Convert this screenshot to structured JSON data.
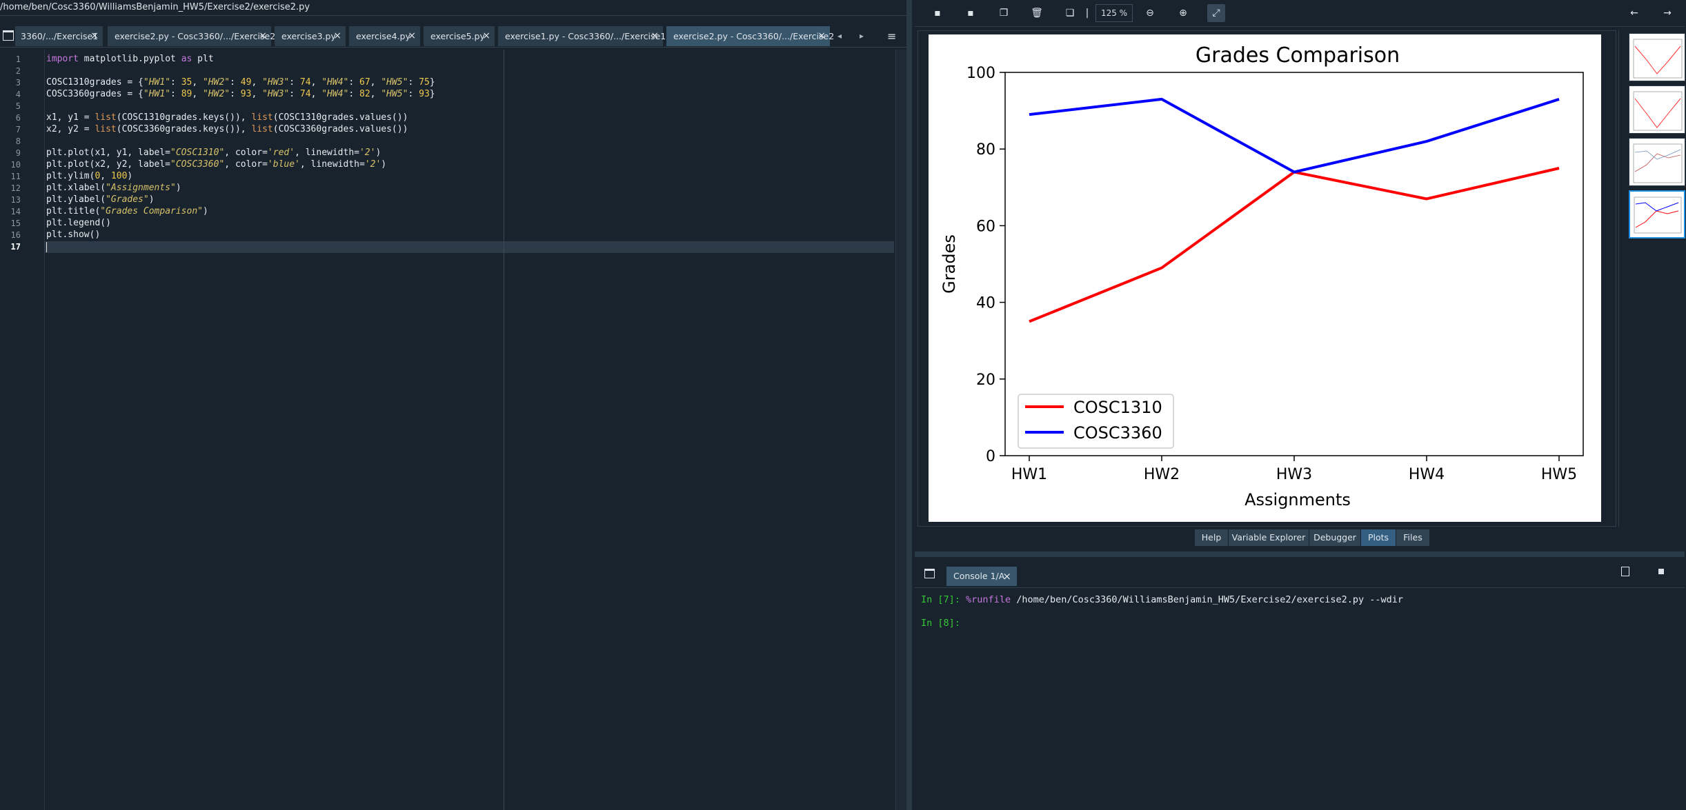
{
  "editor": {
    "path": "/home/ben/Cosc3360/WilliamsBenjamin_HW5/Exercise2/exercise2.py",
    "browse_icon": "folder-icon",
    "tabs": [
      {
        "label": "3360/.../Exercise1",
        "active": false
      },
      {
        "label": "exercise2.py - Cosc3360/.../Exercise2",
        "active": false
      },
      {
        "label": "exercise3.py",
        "active": false
      },
      {
        "label": "exercise4.py",
        "active": false
      },
      {
        "label": "exercise5.py",
        "active": false
      },
      {
        "label": "exercise1.py - Cosc3360/.../Exercise1",
        "active": false
      },
      {
        "label": "exercise2.py - Cosc3360/.../Exercise2",
        "active": true
      }
    ],
    "tab_close": "×",
    "nav_left": "◂",
    "nav_right": "▸",
    "menu_icon": "≡",
    "line_numbers": [
      "1",
      "2",
      "3",
      "4",
      "5",
      "6",
      "7",
      "8",
      "9",
      "10",
      "11",
      "12",
      "13",
      "14",
      "15",
      "16",
      "17"
    ],
    "current_line": "17"
  },
  "plots": {
    "zoom": "125 %",
    "chart_title": "Grades Comparison",
    "xlabel": "Assignments",
    "ylabel": "Grades",
    "yticks": [
      "0",
      "20",
      "40",
      "60",
      "80",
      "100"
    ],
    "categories": [
      "HW1",
      "HW2",
      "HW3",
      "HW4",
      "HW5"
    ],
    "legend": [
      {
        "label": "COSC1310",
        "color": "#ff0000"
      },
      {
        "label": "COSC3360",
        "color": "#0000ff"
      }
    ]
  },
  "chart_data": {
    "type": "line",
    "title": "Grades Comparison",
    "xlabel": "Assignments",
    "ylabel": "Grades",
    "categories": [
      "HW1",
      "HW2",
      "HW3",
      "HW4",
      "HW5"
    ],
    "ylim": [
      0,
      100
    ],
    "legend_position": "bottom-left",
    "series": [
      {
        "name": "COSC1310",
        "color": "#ff0000",
        "values": [
          35,
          49,
          74,
          67,
          75
        ]
      },
      {
        "name": "COSC3360",
        "color": "#0000ff",
        "values": [
          89,
          93,
          74,
          82,
          93
        ]
      }
    ]
  },
  "pane_tabs": [
    {
      "label": "Help",
      "active": false
    },
    {
      "label": "Variable Explorer",
      "active": false
    },
    {
      "label": "Debugger",
      "active": false
    },
    {
      "label": "Plots",
      "active": true
    },
    {
      "label": "Files",
      "active": false
    }
  ],
  "console": {
    "tab_label": "Console 1/A",
    "tab_close": "×",
    "line1_prompt": "In [7]:",
    "line1_magic": "%runfile",
    "line1_args": " /home/ben/Cosc3360/WilliamsBenjamin_HW5/Exercise2/exercise2.py --wdir",
    "line2_prompt": "In [8]:"
  },
  "code": {
    "l1": {
      "kw1": "import",
      "t1": " matplotlib.pyplot ",
      "kw2": "as",
      "t2": " plt"
    },
    "l3": {
      "a": "COSC1310grades = {",
      "k1": "\"HW1\"",
      "c1": ": ",
      "v1": "35",
      "s1": ", ",
      "k2": "\"HW2\"",
      "c2": ": ",
      "v2": "49",
      "s2": ", ",
      "k3": "\"HW3\"",
      "c3": ": ",
      "v3": "74",
      "s3": ", ",
      "k4": "\"HW4\"",
      "c4": ": ",
      "v4": "67",
      "s4": ", ",
      "k5": "\"HW5\"",
      "c5": ": ",
      "v5": "75",
      "e": "}"
    },
    "l4": {
      "a": "COSC3360grades = {",
      "k1": "\"HW1\"",
      "c1": ": ",
      "v1": "89",
      "s1": ", ",
      "k2": "\"HW2\"",
      "c2": ": ",
      "v2": "93",
      "s2": ", ",
      "k3": "\"HW3\"",
      "c3": ": ",
      "v3": "74",
      "s3": ", ",
      "k4": "\"HW4\"",
      "c4": ": ",
      "v4": "82",
      "s4": ", ",
      "k5": "\"HW5\"",
      "c5": ": ",
      "v5": "93",
      "e": "}"
    },
    "l6": {
      "a": "x1, y1 = ",
      "b1": "list",
      "c": "(COSC1310grades.keys()), ",
      "b2": "list",
      "d": "(COSC1310grades.values())"
    },
    "l7": {
      "a": "x2, y2 = ",
      "b1": "list",
      "c": "(COSC3360grades.keys()), ",
      "b2": "list",
      "d": "(COSC3360grades.values())"
    },
    "l9": {
      "a": "plt.plot(x1, y1, label=",
      "s1": "\"COSC1310\"",
      "b": ", color=",
      "s2": "'red'",
      "c": ", linewidth=",
      "s3": "'2'",
      "d": ")"
    },
    "l10": {
      "a": "plt.plot(x2, y2, label=",
      "s1": "\"COSC3360\"",
      "b": ", color=",
      "s2": "'blue'",
      "c": ", linewidth=",
      "s3": "'2'",
      "d": ")"
    },
    "l11": {
      "a": "plt.ylim(",
      "n1": "0",
      "b": ", ",
      "n2": "100",
      "c": ")"
    },
    "l12": {
      "a": "plt.xlabel(",
      "s": "\"Assignments\"",
      "b": ")"
    },
    "l13": {
      "a": "plt.ylabel(",
      "s": "\"Grades\"",
      "b": ")"
    },
    "l14": {
      "a": "plt.title(",
      "s": "\"Grades Comparison\"",
      "b": ")"
    },
    "l15": "plt.legend()",
    "l16": "plt.show()"
  }
}
